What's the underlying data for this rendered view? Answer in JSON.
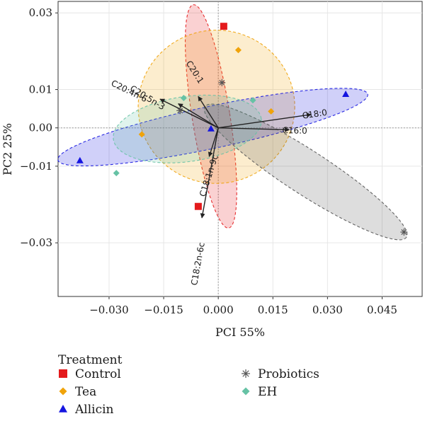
{
  "chart_data": {
    "type": "scatter",
    "xlabel": "PCI 55%",
    "ylabel": "PC2 25%",
    "xlim": [
      -0.044,
      0.056
    ],
    "ylim": [
      -0.044,
      0.033
    ],
    "xticks": [
      -0.03,
      -0.015,
      0.0,
      0.015,
      0.03,
      0.045
    ],
    "xtick_labels": [
      "−0.030",
      "−0.015",
      "0.000",
      "0.015",
      "0.030",
      "0.045"
    ],
    "yticks": [
      0.03,
      0.01,
      0.0,
      -0.01,
      -0.03
    ],
    "ytick_labels": [
      "0.03",
      "0.01",
      "0.00",
      "−0.01",
      "−0.03"
    ],
    "grid": true,
    "legend": {
      "title": "Treatment",
      "position": "bottom"
    },
    "series": [
      {
        "name": "Control",
        "color": "#e41a1c",
        "marker": "square",
        "points": [
          [
            0.0015,
            0.0265
          ],
          [
            -0.0055,
            -0.0205
          ]
        ],
        "ellipse": {
          "cx": -0.002,
          "cy": 0.003,
          "rx": 0.0052,
          "ry": 0.0295,
          "angle": -9
        }
      },
      {
        "name": "Tea",
        "color": "#f0a30a",
        "marker": "diamond",
        "points": [
          [
            0.0055,
            0.0203
          ],
          [
            0.0145,
            0.0043
          ],
          [
            -0.021,
            -0.0017
          ]
        ],
        "ellipse": {
          "cx": -0.0005,
          "cy": 0.0055,
          "rx": 0.0215,
          "ry": 0.02,
          "angle": 0
        }
      },
      {
        "name": "Allicin",
        "color": "#1515e0",
        "marker": "triangle",
        "points": [
          [
            0.035,
            0.0088
          ],
          [
            -0.038,
            -0.0085
          ],
          [
            -0.002,
            -0.0002
          ]
        ],
        "ellipse": {
          "cx": -0.0015,
          "cy": 0.0002,
          "rx": 0.0435,
          "ry": 0.0055,
          "angle": -12
        }
      },
      {
        "name": "Probiotics",
        "color": "#555555",
        "marker": "asterisk",
        "points": [
          [
            0.051,
            -0.0272
          ],
          [
            0.001,
            0.0118
          ],
          [
            -0.0105,
            0.0045
          ]
        ],
        "ellipse": {
          "cx": 0.024,
          "cy": -0.0115,
          "rx": 0.033,
          "ry": 0.0057,
          "angle": 33
        }
      },
      {
        "name": "EH",
        "color": "#66c2a5",
        "marker": "diamond",
        "points": [
          [
            -0.0095,
            0.0078
          ],
          [
            0.0095,
            0.0072
          ],
          [
            -0.028,
            -0.0118
          ]
        ],
        "ellipse": {
          "cx": -0.0085,
          "cy": -0.0003,
          "rx": 0.0205,
          "ry": 0.0085,
          "angle": -8
        }
      }
    ],
    "loadings": [
      {
        "label": "C18:0",
        "x": 0.0255,
        "y": 0.0035,
        "lx": 0.0265,
        "ly": 0.0035
      },
      {
        "label": "C16:0",
        "x": 0.0195,
        "y": -0.0005,
        "lx": 0.021,
        "ly": -0.0008
      },
      {
        "label": "C20:1",
        "x": -0.0055,
        "y": 0.0082,
        "lx": -0.0065,
        "ly": 0.0145
      },
      {
        "label": "C20:4n-6",
        "x": -0.016,
        "y": 0.0075,
        "lx": -0.0245,
        "ly": 0.0095
      },
      {
        "label": "C20:5n-3",
        "x": -0.011,
        "y": 0.0063,
        "lx": -0.0195,
        "ly": 0.0078
      },
      {
        "label": "C18:1n-9c",
        "x": -0.0025,
        "y": -0.0075,
        "lx": -0.0025,
        "ly": -0.0125
      },
      {
        "label": "C18:2n-6c",
        "x": -0.0045,
        "y": -0.0235,
        "lx": -0.0055,
        "ly": -0.0355
      }
    ]
  }
}
